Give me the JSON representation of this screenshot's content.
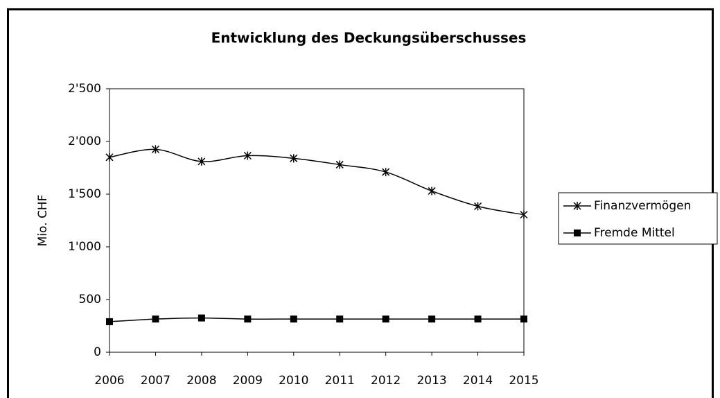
{
  "chart_data": {
    "type": "line",
    "title": "Entwicklung des Deckungsüberschusses",
    "y_label": "Mio. CHF",
    "categories": [
      "2006",
      "2007",
      "2008",
      "2009",
      "2010",
      "2011",
      "2012",
      "2013",
      "2014",
      "2015"
    ],
    "series": [
      {
        "name": "Finanzvermögen",
        "color": "#000000",
        "marker": "star",
        "values": [
          1850,
          1925,
          1810,
          1865,
          1840,
          1780,
          1710,
          1530,
          1385,
          1305
        ]
      },
      {
        "name": "Fremde Mittel",
        "color": "#000000",
        "marker": "square",
        "values": [
          290,
          315,
          325,
          315,
          315,
          315,
          315,
          315,
          315,
          315
        ]
      }
    ],
    "ylim": [
      0,
      2500
    ],
    "yticks": [
      0,
      500,
      {
        "value": 1000,
        "label": "1'000"
      },
      {
        "value": 1500,
        "label": "1'500"
      },
      {
        "value": 2000,
        "label": "2'000"
      },
      {
        "value": 2500,
        "label": "2'500"
      }
    ],
    "grid": false,
    "legend": "right"
  }
}
